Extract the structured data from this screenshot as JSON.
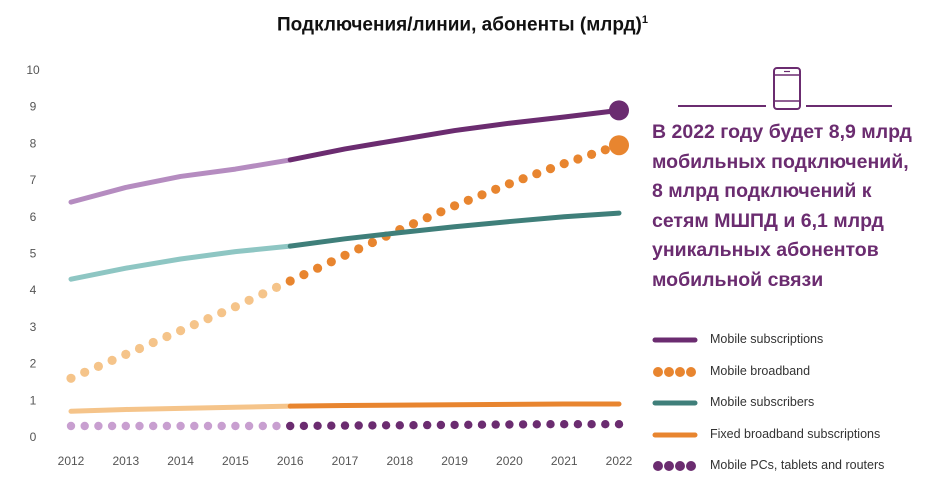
{
  "title": "Подключения/линии, абоненты (млрд)",
  "title_superscript": "1",
  "callout": "В 2022 году будет 8,9 млрд мобильных подключений, 8 млрд подключений к сетям МШПД и 6,1 млрд уникальных абонентов мобильной связи",
  "icon": "smartphone-icon",
  "chart_data": {
    "type": "line",
    "title": "Подключения/линии, абоненты (млрд)",
    "x": [
      "2012",
      "2013",
      "2014",
      "2015",
      "2016",
      "2017",
      "2018",
      "2019",
      "2020",
      "2021",
      "2022"
    ],
    "ylim": [
      0,
      10
    ],
    "yticks": [
      "0",
      "1",
      "2",
      "3",
      "4",
      "5",
      "6",
      "7",
      "8",
      "9",
      "10"
    ],
    "grid": false,
    "legend_position": "bottom-right",
    "forecast_from": "2016",
    "series": [
      {
        "name": "Mobile subscriptions",
        "style": "solid",
        "color": "#6b2c70",
        "light_color": "#b58cc0",
        "values": [
          6.4,
          6.8,
          7.1,
          7.3,
          7.55,
          7.85,
          8.1,
          8.35,
          8.55,
          8.72,
          8.9
        ]
      },
      {
        "name": "Mobile broadband",
        "style": "dotted",
        "color": "#e8852f",
        "light_color": "#f5c48a",
        "values": [
          1.6,
          2.25,
          2.9,
          3.55,
          4.25,
          4.95,
          5.65,
          6.3,
          6.9,
          7.45,
          7.95
        ]
      },
      {
        "name": "Mobile subscribers",
        "style": "solid",
        "color": "#3f7f7a",
        "light_color": "#8ec6c3",
        "values": [
          4.3,
          4.6,
          4.85,
          5.05,
          5.2,
          5.4,
          5.57,
          5.73,
          5.87,
          6.0,
          6.1
        ]
      },
      {
        "name": "Fixed broadband subscriptions",
        "style": "solid",
        "color": "#e8852f",
        "light_color": "#f5c48a",
        "values": [
          0.7,
          0.75,
          0.78,
          0.81,
          0.84,
          0.86,
          0.87,
          0.88,
          0.89,
          0.9,
          0.9
        ]
      },
      {
        "name": "Mobile PCs, tablets and routers",
        "style": "dotted",
        "color": "#6b2c70",
        "light_color": "#c89fd0",
        "values": [
          0.3,
          0.3,
          0.3,
          0.3,
          0.3,
          0.31,
          0.32,
          0.33,
          0.34,
          0.35,
          0.35
        ]
      }
    ]
  }
}
